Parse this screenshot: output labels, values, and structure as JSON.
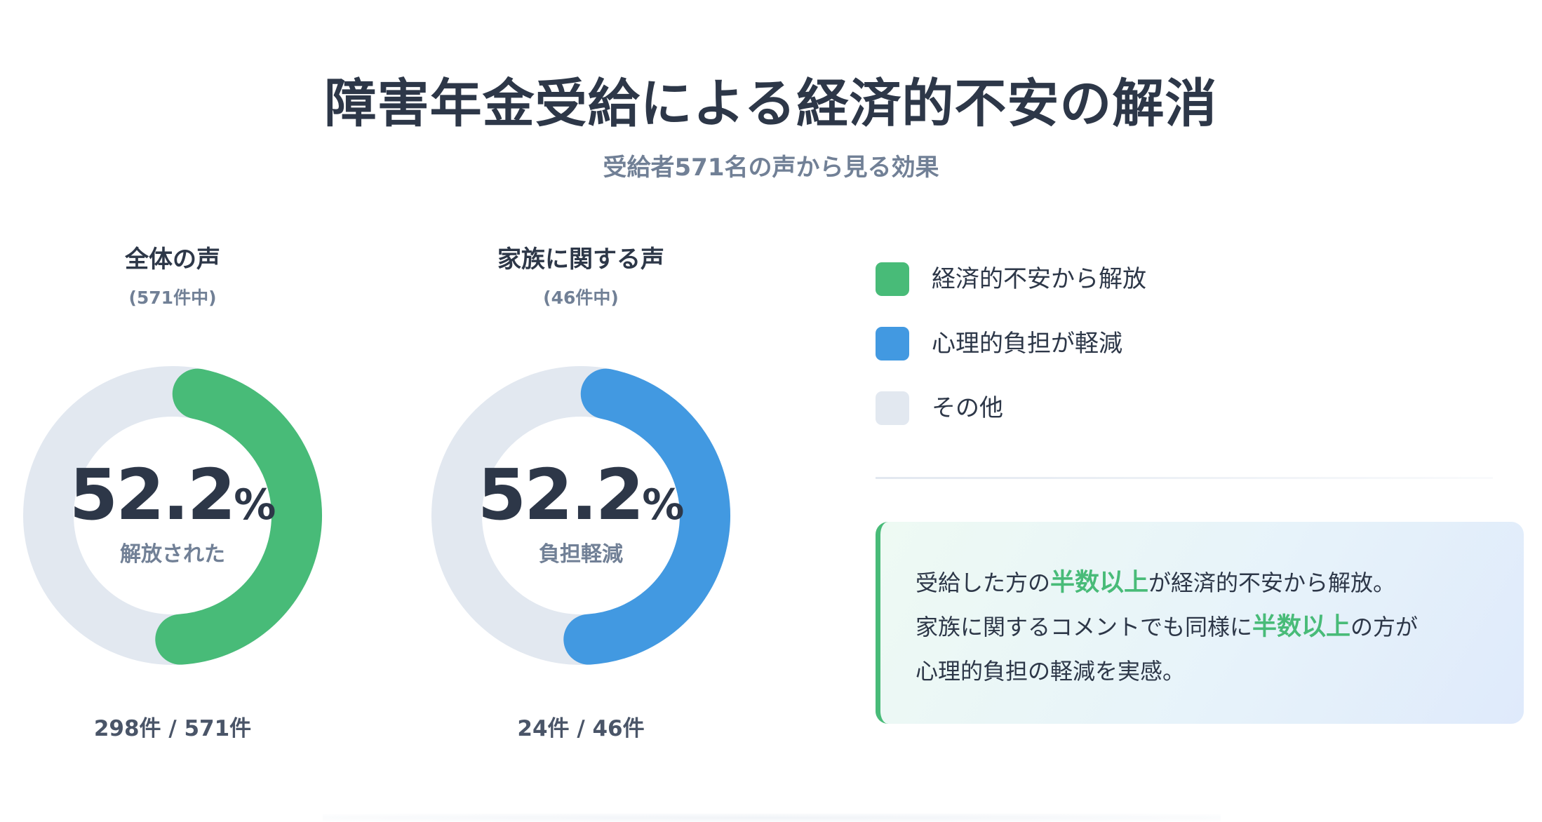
{
  "title": "障害年金受給による経済的不安の解消",
  "subtitle": "受給者571名の声から見る効果",
  "colors": {
    "relief": "#48bb78",
    "burden": "#4299e1",
    "other": "#e2e8f0"
  },
  "chart_data": [
    {
      "type": "pie",
      "title": "全体の声",
      "subtitle": "(571件中)",
      "center_value": "52.2",
      "center_unit": "%",
      "center_label": "解放された",
      "count_text": "298件 / 571件",
      "slices": [
        {
          "name": "経済的不安から解放",
          "value": 298,
          "percent": 52.2,
          "color": "#48bb78"
        },
        {
          "name": "その他",
          "value": 273,
          "percent": 47.8,
          "color": "#e2e8f0"
        }
      ]
    },
    {
      "type": "pie",
      "title": "家族に関する声",
      "subtitle": "(46件中)",
      "center_value": "52.2",
      "center_unit": "%",
      "center_label": "負担軽減",
      "count_text": "24件 / 46件",
      "slices": [
        {
          "name": "心理的負担が軽減",
          "value": 24,
          "percent": 52.2,
          "color": "#4299e1"
        },
        {
          "name": "その他",
          "value": 22,
          "percent": 47.8,
          "color": "#e2e8f0"
        }
      ]
    }
  ],
  "legend": {
    "items": [
      {
        "label": "経済的不安から解放",
        "color": "#48bb78"
      },
      {
        "label": "心理的負担が軽減",
        "color": "#4299e1"
      },
      {
        "label": "その他",
        "color": "#e2e8f0"
      }
    ]
  },
  "callout": {
    "l1a": "受給した方の",
    "l1hl": "半数以上",
    "l1b": "が経済的不安から解放。",
    "l2a": "家族に関するコメントでも同様に",
    "l2hl": "半数以上",
    "l2b": "の方が",
    "l3": "心理的負担の軽減を実感。"
  }
}
